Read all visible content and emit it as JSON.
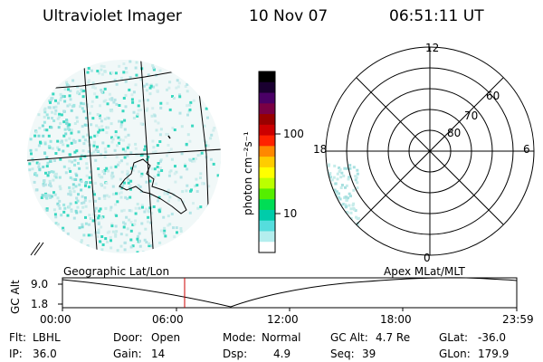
{
  "header": {
    "instrument": "Ultraviolet Imager",
    "date": "10 Nov 07",
    "time": "06:51:11 UT"
  },
  "colorbar": {
    "unit_label": "photon cm⁻²s⁻¹",
    "ticks": [
      "100",
      "10"
    ],
    "colors": [
      "#000000",
      "#1a0030",
      "#4a0066",
      "#7a0044",
      "#990000",
      "#cc0000",
      "#ff2200",
      "#ff8800",
      "#ffcc00",
      "#ffff00",
      "#bbff00",
      "#55ee00",
      "#00dd55",
      "#00ccaa",
      "#55dddd",
      "#b4eeee",
      "#ffffff"
    ]
  },
  "polar": {
    "labels": {
      "top": "12",
      "left": "18",
      "right": "6",
      "bottom": "0"
    },
    "lat_labels": [
      "60",
      "70",
      "80"
    ]
  },
  "panels": {
    "geo_label": "Geographic Lat/Lon",
    "apex_label": "Apex MLat/MLT"
  },
  "alt_plot": {
    "ylabel": "GC Alt",
    "yticks": [
      "9.0",
      "1.8"
    ],
    "xticks": [
      "00:00",
      "06:00",
      "12:00",
      "18:00",
      "23:59"
    ]
  },
  "status": {
    "row1": [
      {
        "label": "Flt:",
        "value": "LBHL"
      },
      {
        "label": "Door:",
        "value": "Open"
      },
      {
        "label": "Mode:",
        "value": "Normal"
      },
      {
        "label": "GC Alt:",
        "value": "4.7 Re"
      },
      {
        "label": "GLat:",
        "value": "-36.0"
      }
    ],
    "row2": [
      {
        "label": "IP:",
        "value": "36.0"
      },
      {
        "label": "Gain:",
        "value": "14"
      },
      {
        "label": "Dsp:",
        "value": "4.9"
      },
      {
        "label": "Seq:",
        "value": "39"
      },
      {
        "label": "GLon:",
        "value": "179.9"
      }
    ]
  }
}
